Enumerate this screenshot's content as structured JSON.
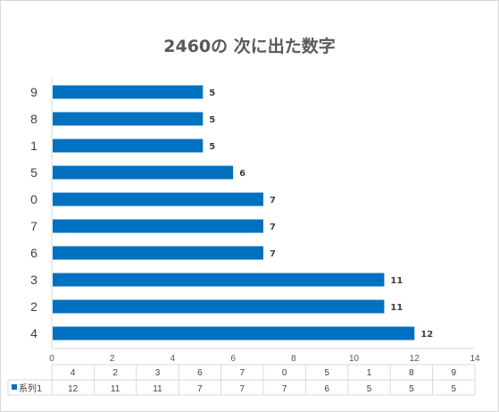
{
  "chart_data": {
    "type": "bar",
    "orientation": "horizontal",
    "title": "2460の 次に出た数字",
    "categories": [
      "4",
      "2",
      "3",
      "6",
      "7",
      "0",
      "5",
      "1",
      "8",
      "9"
    ],
    "series": [
      {
        "name": "系列1",
        "values": [
          12,
          11,
          11,
          7,
          7,
          7,
          6,
          5,
          5,
          5
        ],
        "color": "#0070C0"
      }
    ],
    "xlim": [
      0,
      14
    ],
    "x_ticks": [
      "0",
      "2",
      "4",
      "6",
      "8",
      "10",
      "12",
      "14"
    ],
    "data_labels": true,
    "gridlines": false,
    "data_table": true,
    "legend_placement": "data-table-row"
  }
}
